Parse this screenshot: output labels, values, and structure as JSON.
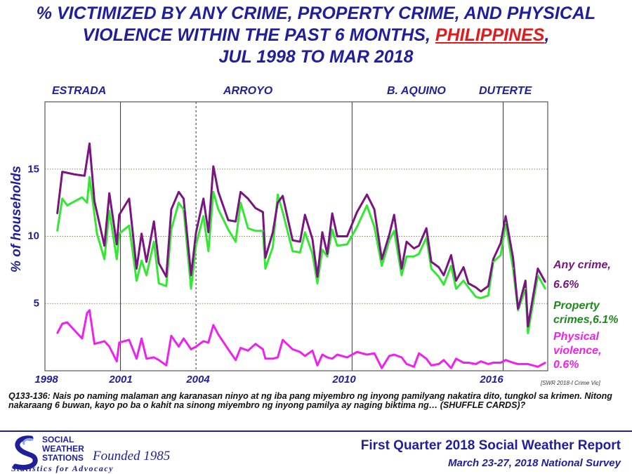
{
  "title": {
    "line1": "% VICTIMIZED BY ANY CRIME, PROPERTY CRIME, AND PHYSICAL",
    "line2_pre": "VIOLENCE WITHIN THE PAST 6 MONTHS, ",
    "line2_highlight": "PHILIPPINES",
    "line2_post": ",",
    "line3": "JUL 1998 TO MAR 2018"
  },
  "administrations": [
    "ESTRADA",
    "ARROYO",
    "B. AQUINO",
    "DUTERTE"
  ],
  "source_note": "[SWR 2018-I Crime Vic]",
  "question_text": "Q133-136: Nais po naming malaman ang karanasan ninyo at ng iba pang miyembro ng inyong pamilyang nakatira dito, tungkol sa krimen. Nitong nakaraang 6 buwan, kayo po ba o kahit na sinong miyembro ng inyong pamilya ay naging biktima ng… (SHUFFLE CARDS)?",
  "logo": {
    "line1": "SOCIAL",
    "line2": "WEATHER",
    "line3": "STATIONS",
    "founded": "Founded 1985",
    "tagline": "Statistics for Advocacy"
  },
  "footer": {
    "title": "First Quarter 2018 Social Weather Report",
    "subtitle": "March 23-27, 2018 National Survey"
  },
  "colors": {
    "title_blue": "#1f1f9c",
    "highlight_red": "#e41a1a",
    "any_crime": "#7a1480",
    "property": "#33e833",
    "property_label": "#1d8a1d",
    "physical": "#ee22ee",
    "frame": "#555555"
  },
  "chart_data": {
    "type": "line",
    "xlabel": "",
    "ylabel": "% of households",
    "xlim": [
      1998,
      2018.3
    ],
    "ylim": [
      0,
      20
    ],
    "xticks": [
      1998,
      2001,
      2004,
      2010,
      2016
    ],
    "yticks": [
      5,
      10,
      15
    ],
    "grid": "horizontal dotted at 5, 10, 15",
    "vertical_markers": [
      {
        "x": 2001.05,
        "style": "solid"
      },
      {
        "x": 2004.1,
        "style": "dashed"
      },
      {
        "x": 2010.4,
        "style": "solid"
      },
      {
        "x": 2016.5,
        "style": "solid"
      }
    ],
    "administrations": [
      {
        "label": "ESTRADA",
        "x": 1998.9
      },
      {
        "label": "ARROYO",
        "x": 2004.8
      },
      {
        "label": "B. AQUINO",
        "x": 2011.95
      },
      {
        "label": "DUTERTE",
        "x": 2016.45
      }
    ],
    "series": [
      {
        "name": "Any crime",
        "end_label": "6.6%",
        "color": "#7a1480",
        "points": [
          [
            1998.5,
            11.7
          ],
          [
            1998.7,
            14.8
          ],
          [
            1999.2,
            14.6
          ],
          [
            1999.6,
            14.5
          ],
          [
            1999.8,
            16.9
          ],
          [
            2000.0,
            12.6
          ],
          [
            2000.4,
            9.3
          ],
          [
            2000.6,
            13.2
          ],
          [
            2000.9,
            9.4
          ],
          [
            2001.0,
            11.6
          ],
          [
            2001.4,
            12.8
          ],
          [
            2001.7,
            7.6
          ],
          [
            2001.9,
            10.2
          ],
          [
            2002.1,
            8.1
          ],
          [
            2002.4,
            11.1
          ],
          [
            2002.6,
            8.0
          ],
          [
            2002.9,
            7.0
          ],
          [
            2003.1,
            12.0
          ],
          [
            2003.4,
            13.3
          ],
          [
            2003.6,
            12.8
          ],
          [
            2003.9,
            7.1
          ],
          [
            2004.1,
            10.3
          ],
          [
            2004.4,
            12.8
          ],
          [
            2004.6,
            10.3
          ],
          [
            2004.8,
            15.2
          ],
          [
            2005.0,
            13.3
          ],
          [
            2005.4,
            11.2
          ],
          [
            2005.7,
            11.1
          ],
          [
            2005.9,
            13.3
          ],
          [
            2006.2,
            12.8
          ],
          [
            2006.5,
            12.1
          ],
          [
            2006.8,
            11.8
          ],
          [
            2006.9,
            8.4
          ],
          [
            2007.2,
            10.3
          ],
          [
            2007.4,
            12.5
          ],
          [
            2007.6,
            13.0
          ],
          [
            2008.0,
            9.7
          ],
          [
            2008.3,
            9.6
          ],
          [
            2008.5,
            11.6
          ],
          [
            2008.8,
            9.8
          ],
          [
            2009.0,
            7.0
          ],
          [
            2009.2,
            10.3
          ],
          [
            2009.4,
            8.7
          ],
          [
            2009.6,
            11.7
          ],
          [
            2009.8,
            10.0
          ],
          [
            2010.2,
            10.0
          ],
          [
            2010.6,
            11.8
          ],
          [
            2011.0,
            13.1
          ],
          [
            2011.3,
            12.0
          ],
          [
            2011.6,
            8.3
          ],
          [
            2011.9,
            10.1
          ],
          [
            2012.1,
            11.6
          ],
          [
            2012.4,
            7.6
          ],
          [
            2012.6,
            9.6
          ],
          [
            2012.9,
            9.1
          ],
          [
            2013.1,
            9.3
          ],
          [
            2013.4,
            10.6
          ],
          [
            2013.6,
            8.1
          ],
          [
            2013.9,
            7.7
          ],
          [
            2014.1,
            7.1
          ],
          [
            2014.4,
            8.6
          ],
          [
            2014.6,
            6.7
          ],
          [
            2014.9,
            7.7
          ],
          [
            2015.1,
            6.5
          ],
          [
            2015.4,
            6.2
          ],
          [
            2015.6,
            5.9
          ],
          [
            2015.9,
            6.3
          ],
          [
            2016.1,
            8.3
          ],
          [
            2016.4,
            9.5
          ],
          [
            2016.6,
            11.5
          ],
          [
            2016.9,
            8.4
          ],
          [
            2017.1,
            4.6
          ],
          [
            2017.4,
            6.7
          ],
          [
            2017.5,
            3.3
          ],
          [
            2017.9,
            7.6
          ],
          [
            2018.2,
            6.6
          ]
        ]
      },
      {
        "name": "Property crimes",
        "end_label": "6.1%",
        "color": "#33e833",
        "points": [
          [
            1998.5,
            10.4
          ],
          [
            1998.7,
            12.8
          ],
          [
            1998.9,
            12.3
          ],
          [
            1999.2,
            12.6
          ],
          [
            1999.5,
            12.9
          ],
          [
            1999.7,
            12.5
          ],
          [
            1999.8,
            14.4
          ],
          [
            2000.1,
            10.2
          ],
          [
            2000.4,
            8.3
          ],
          [
            2000.6,
            11.9
          ],
          [
            2000.9,
            8.3
          ],
          [
            2001.0,
            10.2
          ],
          [
            2001.4,
            10.8
          ],
          [
            2001.7,
            6.7
          ],
          [
            2001.9,
            8.2
          ],
          [
            2002.1,
            7.1
          ],
          [
            2002.4,
            9.6
          ],
          [
            2002.6,
            6.5
          ],
          [
            2002.9,
            6.3
          ],
          [
            2003.1,
            10.5
          ],
          [
            2003.4,
            12.5
          ],
          [
            2003.6,
            12.0
          ],
          [
            2003.9,
            6.1
          ],
          [
            2004.1,
            9.4
          ],
          [
            2004.4,
            11.5
          ],
          [
            2004.6,
            8.9
          ],
          [
            2004.8,
            13.3
          ],
          [
            2005.0,
            12.0
          ],
          [
            2005.4,
            10.5
          ],
          [
            2005.7,
            9.6
          ],
          [
            2005.9,
            12.5
          ],
          [
            2006.2,
            10.6
          ],
          [
            2006.5,
            10.4
          ],
          [
            2006.8,
            10.4
          ],
          [
            2006.9,
            7.6
          ],
          [
            2007.2,
            9.2
          ],
          [
            2007.4,
            13.1
          ],
          [
            2007.6,
            11.8
          ],
          [
            2008.0,
            8.9
          ],
          [
            2008.3,
            8.8
          ],
          [
            2008.5,
            10.3
          ],
          [
            2008.8,
            8.7
          ],
          [
            2009.0,
            6.5
          ],
          [
            2009.2,
            9.0
          ],
          [
            2009.4,
            8.5
          ],
          [
            2009.6,
            10.5
          ],
          [
            2009.8,
            9.3
          ],
          [
            2010.2,
            9.4
          ],
          [
            2010.6,
            10.7
          ],
          [
            2011.0,
            12.3
          ],
          [
            2011.3,
            10.7
          ],
          [
            2011.6,
            7.8
          ],
          [
            2011.9,
            9.7
          ],
          [
            2012.1,
            10.4
          ],
          [
            2012.4,
            7.1
          ],
          [
            2012.6,
            8.5
          ],
          [
            2012.9,
            8.5
          ],
          [
            2013.1,
            8.7
          ],
          [
            2013.4,
            9.9
          ],
          [
            2013.6,
            7.6
          ],
          [
            2013.9,
            7.0
          ],
          [
            2014.1,
            6.4
          ],
          [
            2014.4,
            7.8
          ],
          [
            2014.6,
            6.1
          ],
          [
            2014.9,
            6.7
          ],
          [
            2015.1,
            6.2
          ],
          [
            2015.4,
            5.5
          ],
          [
            2015.6,
            5.4
          ],
          [
            2015.9,
            5.6
          ],
          [
            2016.1,
            8.1
          ],
          [
            2016.4,
            8.6
          ],
          [
            2016.6,
            11.0
          ],
          [
            2016.9,
            7.6
          ],
          [
            2017.1,
            4.5
          ],
          [
            2017.4,
            6.1
          ],
          [
            2017.5,
            2.8
          ],
          [
            2017.9,
            7.1
          ],
          [
            2018.2,
            6.1
          ]
        ]
      },
      {
        "name": "Physical violence",
        "end_label": "0.6%",
        "color": "#ee22ee",
        "points": [
          [
            1998.5,
            2.8
          ],
          [
            1998.7,
            3.5
          ],
          [
            1998.9,
            3.6
          ],
          [
            1999.2,
            3.0
          ],
          [
            1999.5,
            2.4
          ],
          [
            1999.7,
            4.3
          ],
          [
            1999.8,
            4.5
          ],
          [
            2000.0,
            2.0
          ],
          [
            2000.4,
            2.2
          ],
          [
            2000.6,
            1.8
          ],
          [
            2000.9,
            0.7
          ],
          [
            2001.0,
            2.1
          ],
          [
            2001.4,
            2.3
          ],
          [
            2001.7,
            0.9
          ],
          [
            2001.9,
            2.4
          ],
          [
            2002.1,
            0.9
          ],
          [
            2002.4,
            1.0
          ],
          [
            2002.6,
            0.8
          ],
          [
            2002.9,
            0.4
          ],
          [
            2003.1,
            2.6
          ],
          [
            2003.4,
            1.8
          ],
          [
            2003.6,
            2.4
          ],
          [
            2003.9,
            1.6
          ],
          [
            2004.1,
            1.8
          ],
          [
            2004.4,
            2.2
          ],
          [
            2004.6,
            2.1
          ],
          [
            2004.8,
            3.4
          ],
          [
            2005.0,
            2.7
          ],
          [
            2005.4,
            1.6
          ],
          [
            2005.7,
            0.8
          ],
          [
            2005.9,
            1.7
          ],
          [
            2006.2,
            1.5
          ],
          [
            2006.5,
            2.0
          ],
          [
            2006.8,
            1.6
          ],
          [
            2006.9,
            0.9
          ],
          [
            2007.2,
            0.9
          ],
          [
            2007.4,
            1.0
          ],
          [
            2007.6,
            2.3
          ],
          [
            2008.0,
            1.6
          ],
          [
            2008.3,
            1.4
          ],
          [
            2008.5,
            1.1
          ],
          [
            2008.8,
            1.5
          ],
          [
            2009.0,
            0.4
          ],
          [
            2009.2,
            1.2
          ],
          [
            2009.4,
            1.0
          ],
          [
            2009.6,
            0.9
          ],
          [
            2009.8,
            1.2
          ],
          [
            2010.2,
            1.0
          ],
          [
            2010.6,
            1.4
          ],
          [
            2011.0,
            1.2
          ],
          [
            2011.3,
            1.3
          ],
          [
            2011.6,
            0.2
          ],
          [
            2011.9,
            1.1
          ],
          [
            2012.1,
            1.2
          ],
          [
            2012.4,
            1.0
          ],
          [
            2012.6,
            0.5
          ],
          [
            2012.9,
            0.3
          ],
          [
            2013.1,
            1.3
          ],
          [
            2013.4,
            0.9
          ],
          [
            2013.6,
            0.4
          ],
          [
            2013.9,
            0.5
          ],
          [
            2014.1,
            0.8
          ],
          [
            2014.4,
            0.2
          ],
          [
            2014.6,
            0.9
          ],
          [
            2014.9,
            0.6
          ],
          [
            2015.1,
            0.6
          ],
          [
            2015.4,
            0.5
          ],
          [
            2015.6,
            0.7
          ],
          [
            2015.9,
            0.5
          ],
          [
            2016.1,
            0.6
          ],
          [
            2016.4,
            0.6
          ],
          [
            2016.6,
            0.8
          ],
          [
            2016.9,
            0.6
          ],
          [
            2017.1,
            0.5
          ],
          [
            2017.4,
            0.5
          ],
          [
            2017.5,
            0.5
          ],
          [
            2017.9,
            0.3
          ],
          [
            2018.2,
            0.6
          ]
        ]
      }
    ],
    "legend": [
      {
        "name": "Any crime,",
        "value": "6.6%",
        "placement": "right",
        "color": "#7a1480"
      },
      {
        "name": "Property crimes,",
        "value": "6.1%",
        "placement": "right",
        "color": "#1d8a1d"
      },
      {
        "name": "Physical violence,",
        "value": "0.6%",
        "placement": "right",
        "color": "#ee22ee"
      }
    ]
  }
}
